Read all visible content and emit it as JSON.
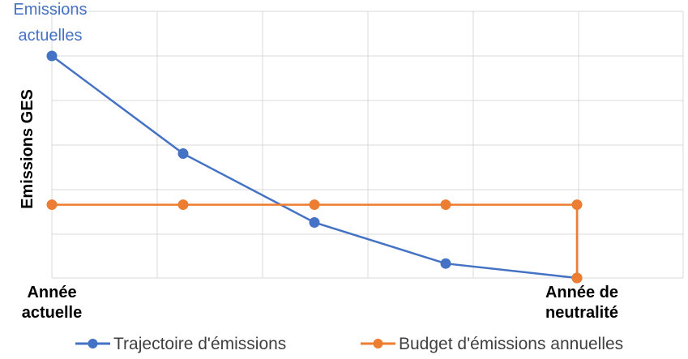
{
  "chart_data": {
    "type": "line",
    "title": "",
    "ylabel": "Emissions GES",
    "xlabel": "",
    "annotation_top": [
      "Emissions",
      "actuelles"
    ],
    "x_start_label": [
      "Année",
      "actuelle"
    ],
    "x_end_label": [
      "Année de",
      "neutralité"
    ],
    "grid": true,
    "legend_position": "bottom",
    "x": [
      0,
      1,
      2,
      3,
      4
    ],
    "ylim": [
      0,
      100
    ],
    "series": [
      {
        "name": "Trajectoire d'émissions",
        "color": "#4472C4",
        "values": [
          100,
          56,
          25,
          6.5,
          0
        ]
      },
      {
        "name": "Budget d'émissions annuelles",
        "color": "#ED7D31",
        "values": [
          33,
          33,
          33,
          33,
          33
        ],
        "drop_to_zero_at_end": true
      }
    ]
  }
}
